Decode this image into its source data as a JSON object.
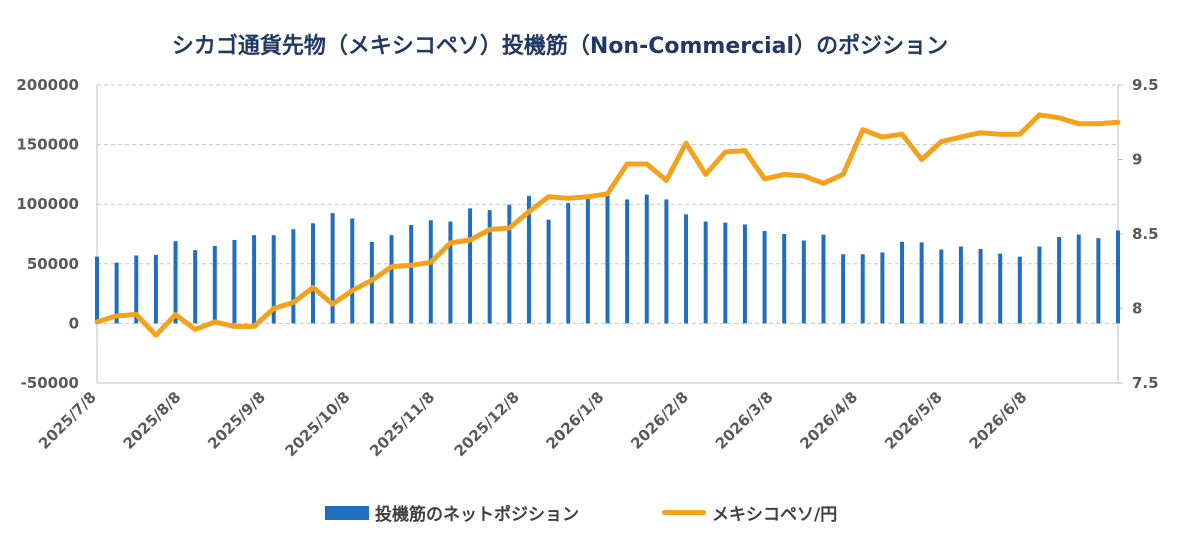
{
  "chart_data": {
    "type": "bar+line",
    "title": "シカゴ通貨先物（メキシコペソ）投機筋（Non-Commercial）のポジション",
    "x_tick_labels": [
      "2025/7/8",
      "2025/8/8",
      "2025/9/8",
      "2025/10/8",
      "2025/11/8",
      "2025/12/8",
      "2026/1/8",
      "2026/2/8",
      "2026/3/8",
      "2026/4/8",
      "2026/5/8",
      "2026/6/8"
    ],
    "y_left": {
      "ylim": [
        -50000,
        200000
      ],
      "ticks": [
        "200000",
        "150000",
        "100000",
        "50000",
        "0",
        "-50000"
      ]
    },
    "y_right": {
      "ylim": [
        7.5,
        9.5
      ],
      "ticks": [
        "9.5",
        "9",
        "8.5",
        "8",
        "7.5"
      ]
    },
    "grid": true,
    "legend_position": "bottom",
    "series": [
      {
        "name": "投機筋のネットポジション",
        "type": "bar",
        "axis": "left",
        "color": "#1f6fc0",
        "values": [
          56000,
          51000,
          57000,
          57500,
          69000,
          61500,
          65000,
          70000,
          74000,
          74000,
          79000,
          84000,
          92500,
          88000,
          68500,
          74000,
          82500,
          86500,
          85500,
          96500,
          95000,
          99500,
          107000,
          87000,
          101000,
          107000,
          109500,
          104000,
          108000,
          104000,
          91500,
          85500,
          84500,
          83000,
          77500,
          75000,
          69500,
          74500,
          58000,
          58000,
          59500,
          68500,
          68000,
          62000,
          64500,
          62500,
          58500,
          56000,
          64500,
          72500,
          74500,
          71500,
          78000
        ]
      },
      {
        "name": "メキシコペソ/円",
        "type": "line",
        "axis": "right",
        "color": "#f4a11c",
        "values": [
          7.91,
          7.95,
          7.96,
          7.82,
          7.96,
          7.86,
          7.91,
          7.88,
          7.88,
          8.0,
          8.04,
          8.14,
          8.03,
          8.12,
          8.19,
          8.28,
          8.29,
          8.31,
          8.44,
          8.46,
          8.53,
          8.54,
          8.65,
          8.75,
          8.74,
          8.75,
          8.77,
          8.97,
          8.97,
          8.86,
          9.11,
          8.9,
          9.05,
          9.06,
          8.87,
          8.9,
          8.89,
          8.84,
          8.9,
          9.2,
          9.15,
          9.17,
          9.0,
          9.12,
          9.15,
          9.18,
          9.17,
          9.17,
          9.3,
          9.28,
          9.24,
          9.24,
          9.25
        ]
      }
    ]
  }
}
